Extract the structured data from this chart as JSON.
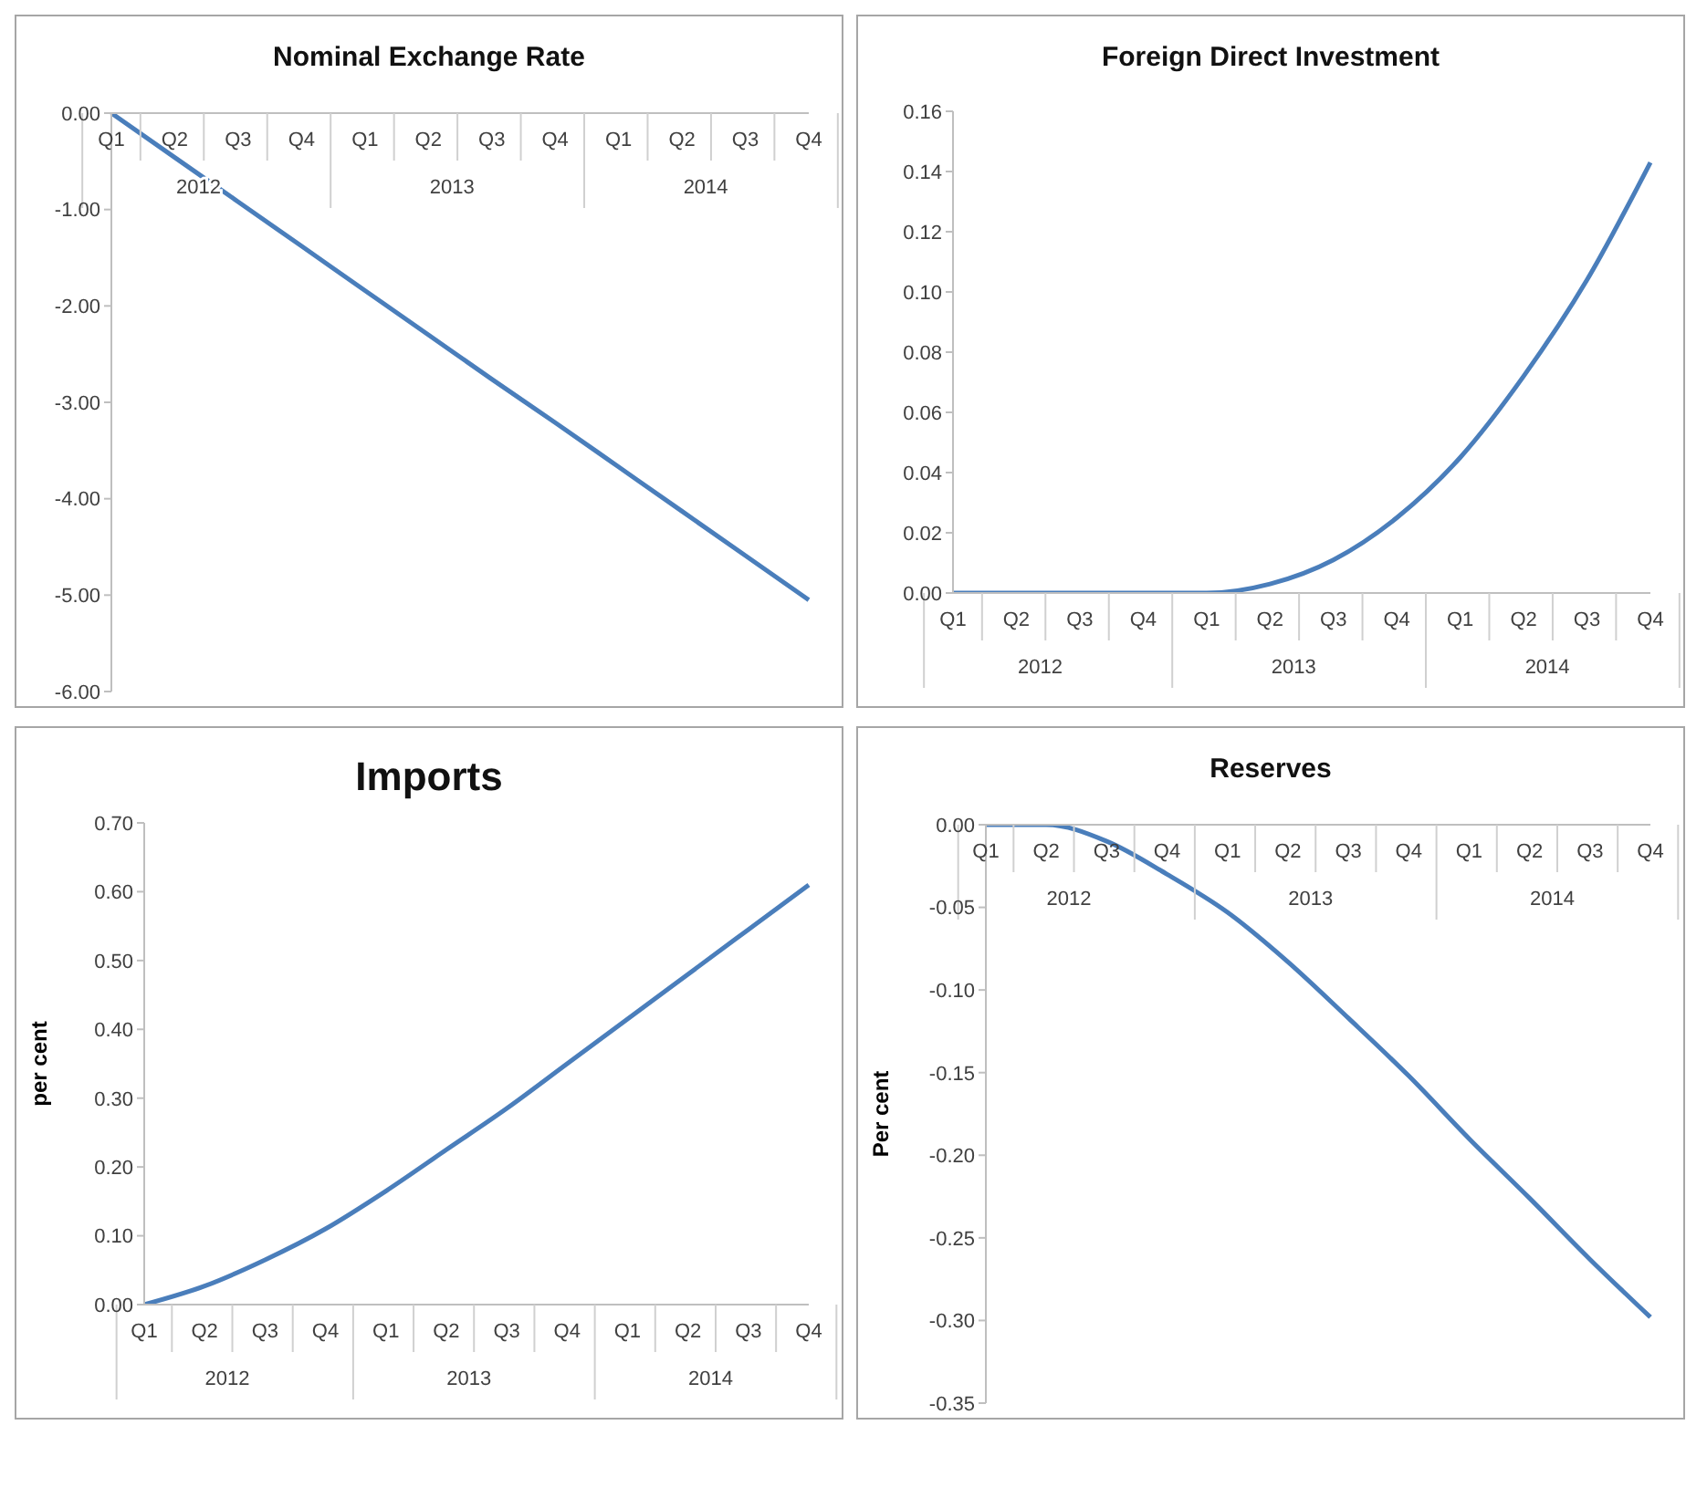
{
  "chart_data": [
    {
      "type": "line",
      "title": "Nominal Exchange Rate",
      "categories": [
        "Q1",
        "Q2",
        "Q3",
        "Q4",
        "Q1",
        "Q2",
        "Q3",
        "Q4",
        "Q1",
        "Q2",
        "Q3",
        "Q4"
      ],
      "series": [
        {
          "color": "#4a7ebb",
          "values": [
            0,
            -0.46,
            -0.92,
            -1.38,
            -1.84,
            -2.3,
            -2.76,
            -3.21,
            -3.67,
            -4.13,
            -4.59,
            -5.05
          ]
        }
      ],
      "ylim": [
        -6,
        0
      ],
      "yticks": [
        {
          "value": -6,
          "label": "-6.00"
        },
        {
          "value": -5,
          "label": "-5.00"
        },
        {
          "value": -4,
          "label": "-4.00"
        },
        {
          "value": -3,
          "label": "-3.00"
        },
        {
          "value": -2,
          "label": "-2.00"
        },
        {
          "value": -1,
          "label": "-1.00"
        },
        {
          "value": 0,
          "label": "0.00"
        }
      ],
      "annotations": [
        {
          "text": "2012"
        },
        {
          "text": "2013"
        },
        {
          "text": "2014"
        }
      ],
      "grid": false,
      "legend": false,
      "marker": "none",
      "line_style": "solid"
    },
    {
      "type": "line",
      "title": "Foreign Direct Investment",
      "categories": [
        "Q1",
        "Q2",
        "Q3",
        "Q4",
        "Q1",
        "Q2",
        "Q3",
        "Q4",
        "Q1",
        "Q2",
        "Q3",
        "Q4"
      ],
      "series": [
        {
          "color": "#4a7ebb",
          "values": [
            0,
            0,
            0,
            0,
            0,
            0.003,
            0.011,
            0.025,
            0.045,
            0.072,
            0.104,
            0.143
          ]
        }
      ],
      "ylim": [
        0,
        0.16
      ],
      "yticks": [
        {
          "value": 0,
          "label": "0.00"
        },
        {
          "value": 0.02,
          "label": "0.02"
        },
        {
          "value": 0.04,
          "label": "0.04"
        },
        {
          "value": 0.06,
          "label": "0.06"
        },
        {
          "value": 0.08,
          "label": "0.08"
        },
        {
          "value": 0.1,
          "label": "0.10"
        },
        {
          "value": 0.12,
          "label": "0.12"
        },
        {
          "value": 0.14,
          "label": "0.14"
        },
        {
          "value": 0.16,
          "label": "0.16"
        }
      ],
      "annotations": [
        "2012",
        "2013",
        "2014"
      ],
      "grid": false,
      "legend": false,
      "marker": "none",
      "line_style": "solid"
    },
    {
      "type": "line",
      "title": "Imports",
      "ylabel": "per cent",
      "categories": [
        "Q1",
        "Q2",
        "Q3",
        "Q4",
        "Q1",
        "Q2",
        "Q3",
        "Q4",
        "Q1",
        "Q2",
        "Q3",
        "Q4"
      ],
      "series": [
        {
          "color": "#4a7ebb",
          "values": [
            0,
            0.027,
            0.065,
            0.11,
            0.165,
            0.225,
            0.285,
            0.35,
            0.415,
            0.48,
            0.545,
            0.61
          ]
        }
      ],
      "ylim": [
        0,
        0.7
      ],
      "yticks": [
        {
          "value": 0,
          "label": "0.00"
        },
        {
          "value": 0.1,
          "label": "0.10"
        },
        {
          "value": 0.2,
          "label": "0.20"
        },
        {
          "value": 0.3,
          "label": "0.30"
        },
        {
          "value": 0.4,
          "label": "0.40"
        },
        {
          "value": 0.5,
          "label": "0.50"
        },
        {
          "value": 0.6,
          "label": "0.60"
        },
        {
          "value": 0.7,
          "label": "0.70"
        }
      ],
      "annotations": [
        "2012",
        "2013",
        "2014"
      ],
      "grid": false,
      "legend": false,
      "marker": "none",
      "line_style": "solid"
    },
    {
      "type": "line",
      "title": "Reserves",
      "ylabel": "Per cent",
      "categories": [
        "Q1",
        "Q2",
        "Q3",
        "Q4",
        "Q1",
        "Q2",
        "Q3",
        "Q4",
        "Q1",
        "Q2",
        "Q3",
        "Q4"
      ],
      "series": [
        {
          "color": "#4a7ebb",
          "values": [
            0,
            0,
            -0.01,
            -0.03,
            -0.053,
            -0.083,
            -0.117,
            -0.152,
            -0.19,
            -0.226,
            -0.263,
            -0.298
          ]
        }
      ],
      "ylim": [
        -0.35,
        0
      ],
      "yticks": [
        {
          "value": -0.35,
          "label": "-0.35"
        },
        {
          "value": -0.3,
          "label": "-0.30"
        },
        {
          "value": -0.25,
          "label": "-0.25"
        },
        {
          "value": -0.2,
          "label": "-0.20"
        },
        {
          "value": -0.15,
          "label": "-0.15"
        },
        {
          "value": -0.1,
          "label": "-0.10"
        },
        {
          "value": -0.05,
          "label": "-0.05"
        },
        {
          "value": 0,
          "label": "0.00"
        }
      ],
      "annotations": [
        {
          "text": "2012"
        },
        {
          "text": "2013"
        },
        {
          "text": "2014"
        }
      ],
      "grid": false,
      "legend": false,
      "marker": "none",
      "line_style": "solid"
    }
  ]
}
